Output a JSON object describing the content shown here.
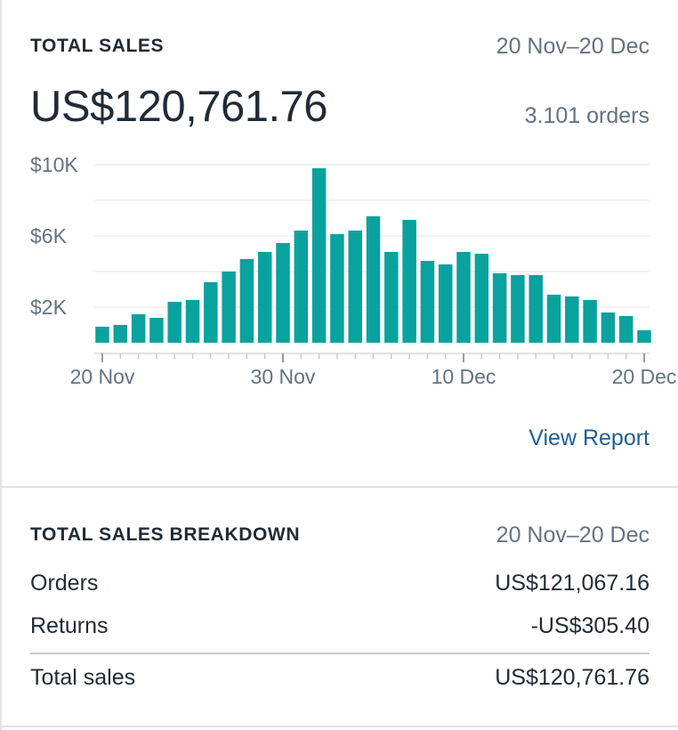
{
  "total_sales_card": {
    "heading": "TOTAL SALES",
    "date_range": "20 Nov–20 Dec",
    "total": "US$120,761.76",
    "orders_count": "3.101 orders",
    "view_report_label": "View Report"
  },
  "chart_data": {
    "type": "bar",
    "title": "",
    "xlabel": "",
    "ylabel": "",
    "ylim": [
      0,
      10400
    ],
    "y_ticks": [
      {
        "value": 10000,
        "label": "$10K"
      },
      {
        "value": 6000,
        "label": "$6K"
      },
      {
        "value": 2000,
        "label": "$2K"
      }
    ],
    "grid_values": [
      10000,
      8000,
      6000,
      4000,
      2000
    ],
    "x_tick_labels": [
      {
        "index": 0,
        "label": "20 Nov"
      },
      {
        "index": 10,
        "label": "30 Nov"
      },
      {
        "index": 20,
        "label": "10 Dec"
      },
      {
        "index": 30,
        "label": "20 Dec"
      }
    ],
    "grid": true,
    "bar_color": "#0aa29e",
    "categories": [
      "20 Nov",
      "21 Nov",
      "22 Nov",
      "23 Nov",
      "24 Nov",
      "25 Nov",
      "26 Nov",
      "27 Nov",
      "28 Nov",
      "29 Nov",
      "30 Nov",
      "1 Dec",
      "2 Dec",
      "3 Dec",
      "4 Dec",
      "5 Dec",
      "6 Dec",
      "7 Dec",
      "8 Dec",
      "9 Dec",
      "10 Dec",
      "11 Dec",
      "12 Dec",
      "13 Dec",
      "14 Dec",
      "15 Dec",
      "16 Dec",
      "17 Dec",
      "18 Dec",
      "19 Dec",
      "20 Dec"
    ],
    "values": [
      900,
      1000,
      1600,
      1400,
      2300,
      2400,
      3400,
      4000,
      4700,
      5100,
      5600,
      6300,
      9800,
      6100,
      6300,
      7100,
      5100,
      6900,
      4600,
      4400,
      5100,
      5000,
      3900,
      3800,
      3800,
      2700,
      2600,
      2400,
      1700,
      1500,
      700
    ]
  },
  "breakdown_card": {
    "heading": "TOTAL SALES BREAKDOWN",
    "date_range": "20 Nov–20 Dec",
    "rows": [
      {
        "label": "Orders",
        "value": "US$121,067.16"
      },
      {
        "label": "Returns",
        "value": "-US$305.40"
      }
    ],
    "total_row": {
      "label": "Total sales",
      "value": "US$120,761.76"
    }
  }
}
